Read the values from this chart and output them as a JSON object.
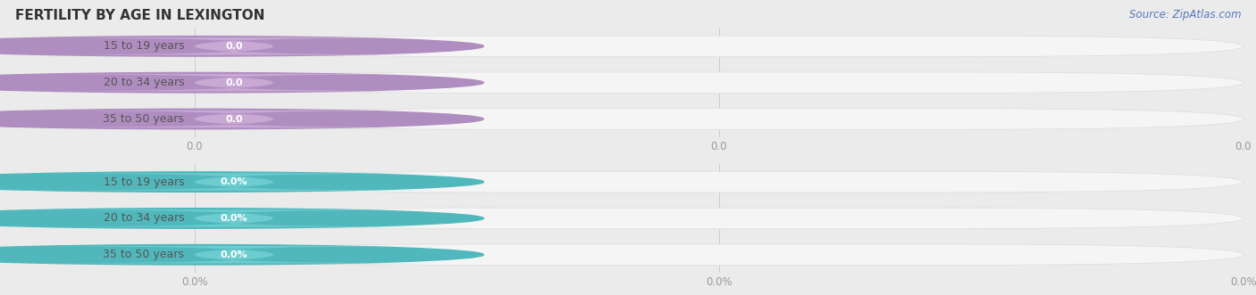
{
  "title": "FERTILITY BY AGE IN LEXINGTON",
  "source": "Source: ZipAtlas.com",
  "categories": [
    "15 to 19 years",
    "20 to 34 years",
    "35 to 50 years"
  ],
  "group1_values": [
    0.0,
    0.0,
    0.0
  ],
  "group1_label_suffix": "",
  "group1_color_pill": "#c9a8d4",
  "group1_color_left_circle": "#b08dc0",
  "group1_tick_labels": [
    "0.0",
    "0.0",
    "0.0"
  ],
  "group2_values": [
    0.0,
    0.0,
    0.0
  ],
  "group2_label_suffix": "%",
  "group2_color_pill": "#6dcccf",
  "group2_color_left_circle": "#50b8bc",
  "group2_tick_labels": [
    "0.0%",
    "0.0%",
    "0.0%"
  ],
  "bg_color": "#ebebeb",
  "bar_bg_color": "#f5f5f5",
  "bar_border_color": "#e0e0e0",
  "title_fontsize": 11,
  "source_fontsize": 8.5,
  "label_fontsize": 9,
  "value_fontsize": 8,
  "tick_fontsize": 8.5,
  "tick_color": "#999999",
  "label_color": "#555555",
  "value_text_color": "#ffffff"
}
